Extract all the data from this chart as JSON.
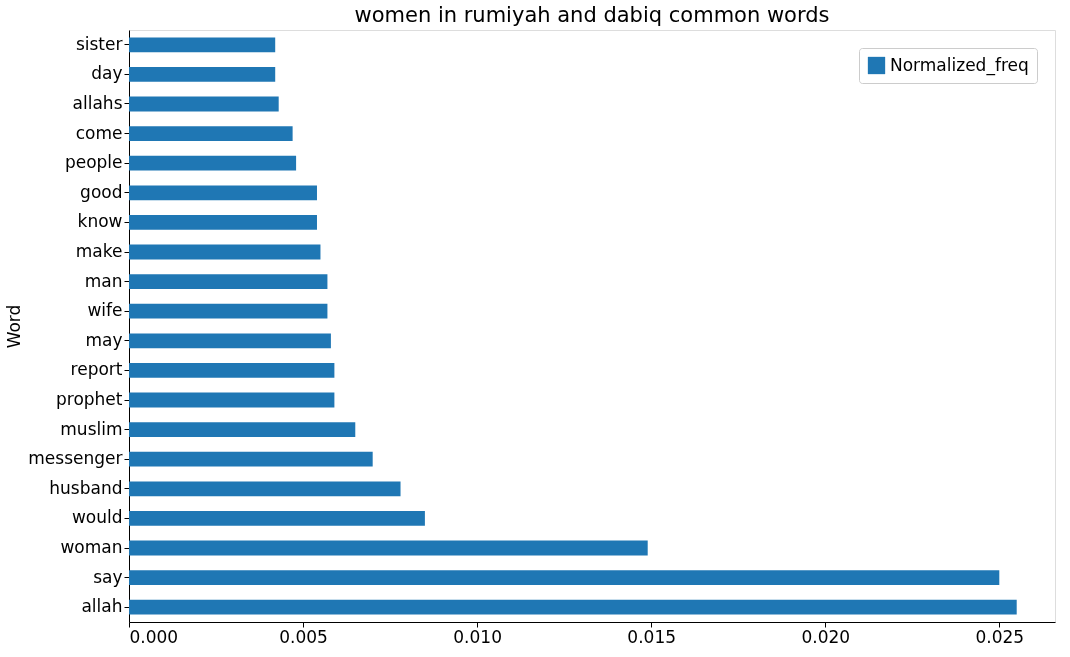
{
  "chart_data": {
    "type": "bar",
    "orientation": "horizontal",
    "title": "women in rumiyah and dabiq common words",
    "ylabel": "Word",
    "categories": [
      "sister",
      "day",
      "allahs",
      "come",
      "people",
      "good",
      "know",
      "make",
      "man",
      "wife",
      "may",
      "report",
      "prophet",
      "muslim",
      "messenger",
      "husband",
      "would",
      "woman",
      "say",
      "allah"
    ],
    "series": [
      {
        "name": "Normalized_freq",
        "color": "#1f77b4",
        "values": [
          0.0042,
          0.0042,
          0.0043,
          0.0047,
          0.0048,
          0.0054,
          0.0054,
          0.0055,
          0.0057,
          0.0057,
          0.0058,
          0.0059,
          0.0059,
          0.0065,
          0.007,
          0.0078,
          0.0085,
          0.0149,
          0.025,
          0.0255
        ]
      }
    ],
    "xlim": [
      0,
      0.0266
    ],
    "xticks": [
      {
        "value": 0,
        "label": "0.000"
      },
      {
        "value": 0.005,
        "label": "0.005"
      },
      {
        "value": 0.01,
        "label": "0.010"
      },
      {
        "value": 0.015,
        "label": "0.015"
      },
      {
        "value": 0.02,
        "label": "0.020"
      },
      {
        "value": 0.025,
        "label": "0.025"
      }
    ],
    "grid": false,
    "legend": "top right"
  }
}
